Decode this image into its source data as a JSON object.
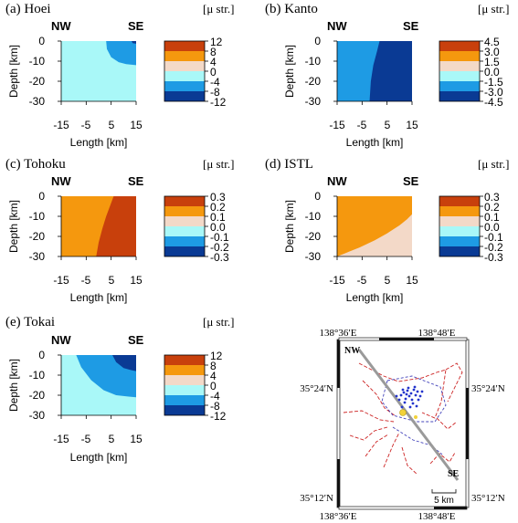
{
  "colors": {
    "dark_orange": "#c8400c",
    "orange": "#f5980e",
    "peach": "#f3d9c8",
    "cyan": "#a9f8f8",
    "sky": "#1e9be4",
    "navy": "#0a3a94"
  },
  "chart_data": [
    {
      "type": "heatmap",
      "panel": "(a) Hoei",
      "orient_left": "NW",
      "orient_right": "SE",
      "xlabel": "Length [km]",
      "ylabel": "Depth [km]",
      "xticks": [
        "-15",
        "-5",
        "5",
        "15"
      ],
      "yticks": [
        "0",
        "-10",
        "-20",
        "-30"
      ],
      "xlim": [
        -15,
        15
      ],
      "ylim": [
        -30,
        0
      ],
      "unit": "[μ str.]",
      "colorbar_values": [
        "12",
        "8",
        "4",
        "0",
        "-4",
        "-8",
        "-12"
      ],
      "colorbar_colors": [
        "#c8400c",
        "#f5980e",
        "#f3d9c8",
        "#a9f8f8",
        "#1e9be4",
        "#0a3a94"
      ],
      "regions": [
        {
          "color": "#a9f8f8",
          "boundary": null
        },
        {
          "color": "#1e9be4",
          "boundary": [
            [
              3,
              0
            ],
            [
              3.3,
              -4
            ],
            [
              5,
              -8
            ],
            [
              8,
              -10.5
            ],
            [
              11,
              -11.5
            ],
            [
              15,
              -12
            ]
          ]
        },
        {
          "color": "#0a3a94",
          "boundary": [
            [
              13.2,
              0
            ],
            [
              13.6,
              -1
            ],
            [
              15,
              -1.3
            ]
          ]
        }
      ]
    },
    {
      "type": "heatmap",
      "panel": "(b) Kanto",
      "orient_left": "NW",
      "orient_right": "SE",
      "xlabel": "Length [km]",
      "ylabel": "Depth [km]",
      "xticks": [
        "-15",
        "-5",
        "5",
        "15"
      ],
      "yticks": [
        "0",
        "-10",
        "-20",
        "-30"
      ],
      "xlim": [
        -15,
        15
      ],
      "ylim": [
        -30,
        0
      ],
      "unit": "[μ str.]",
      "colorbar_values": [
        "4.5",
        "3.0",
        "1.5",
        "0.0",
        "-1.5",
        "-3.0",
        "-4.5"
      ],
      "colorbar_colors": [
        "#c8400c",
        "#f5980e",
        "#f3d9c8",
        "#a9f8f8",
        "#1e9be4",
        "#0a3a94"
      ],
      "regions": [
        {
          "color": "#1e9be4",
          "boundary": null
        },
        {
          "color": "#0a3a94",
          "boundary": [
            [
              2,
              0
            ],
            [
              1,
              -5
            ],
            [
              -0.5,
              -12
            ],
            [
              -1.5,
              -20
            ],
            [
              -2,
              -30
            ]
          ]
        }
      ]
    },
    {
      "type": "heatmap",
      "panel": "(c) Tohoku",
      "orient_left": "NW",
      "orient_right": "SE",
      "xlabel": "Length [km]",
      "ylabel": "Depth [km]",
      "xticks": [
        "-15",
        "-5",
        "5",
        "15"
      ],
      "yticks": [
        "0",
        "-10",
        "-20",
        "-30"
      ],
      "xlim": [
        -15,
        15
      ],
      "ylim": [
        -30,
        0
      ],
      "unit": "[μ str.]",
      "colorbar_values": [
        "0.3",
        "0.2",
        "0.1",
        "0.0",
        "-0.1",
        "-0.2",
        "-0.3"
      ],
      "colorbar_colors": [
        "#c8400c",
        "#f5980e",
        "#f3d9c8",
        "#a9f8f8",
        "#1e9be4",
        "#0a3a94"
      ],
      "regions": [
        {
          "color": "#f5980e",
          "boundary": null
        },
        {
          "color": "#c8400c",
          "boundary": [
            [
              6,
              0
            ],
            [
              4.5,
              -5
            ],
            [
              3,
              -10
            ],
            [
              1.5,
              -16
            ],
            [
              0,
              -23
            ],
            [
              -1,
              -30
            ]
          ]
        }
      ]
    },
    {
      "type": "heatmap",
      "panel": "(d) ISTL",
      "orient_left": "NW",
      "orient_right": "SE",
      "xlabel": "Length [km]",
      "ylabel": "Depth [km]",
      "xticks": [
        "-15",
        "-5",
        "5",
        "15"
      ],
      "yticks": [
        "0",
        "-10",
        "-20",
        "-30"
      ],
      "xlim": [
        -15,
        15
      ],
      "ylim": [
        -30,
        0
      ],
      "unit": "[μ str.]",
      "colorbar_values": [
        "0.3",
        "0.2",
        "0.1",
        "0.0",
        "-0.1",
        "-0.2",
        "-0.3"
      ],
      "colorbar_colors": [
        "#c8400c",
        "#f5980e",
        "#f3d9c8",
        "#a9f8f8",
        "#1e9be4",
        "#0a3a94"
      ],
      "regions": [
        {
          "color": "#f3d9c8",
          "boundary": null
        },
        {
          "color": "#f5980e",
          "boundary": [
            [
              -15,
              -30
            ],
            [
              -12,
              -28.5
            ],
            [
              -6,
              -25.5
            ],
            [
              0,
              -22
            ],
            [
              5,
              -18.5
            ],
            [
              10,
              -14.5
            ],
            [
              13,
              -11.5
            ],
            [
              15,
              -9
            ]
          ]
        }
      ]
    },
    {
      "type": "heatmap",
      "panel": "(e) Tokai",
      "orient_left": "NW",
      "orient_right": "SE",
      "xlabel": "Length [km]",
      "ylabel": "Depth [km]",
      "xticks": [
        "-15",
        "-5",
        "5",
        "15"
      ],
      "yticks": [
        "0",
        "-10",
        "-20",
        "-30"
      ],
      "xlim": [
        -15,
        15
      ],
      "ylim": [
        -30,
        0
      ],
      "unit": "[μ str.]",
      "colorbar_values": [
        "12",
        "8",
        "4",
        "0",
        "-4",
        "-8",
        "-12"
      ],
      "colorbar_colors": [
        "#c8400c",
        "#f5980e",
        "#f3d9c8",
        "#a9f8f8",
        "#1e9be4",
        "#0a3a94"
      ],
      "regions": [
        {
          "color": "#a9f8f8",
          "boundary": null
        },
        {
          "color": "#1e9be4",
          "boundary": [
            [
              -9,
              0
            ],
            [
              -7,
              -6
            ],
            [
              -3,
              -12.5
            ],
            [
              2,
              -17.5
            ],
            [
              7,
              -20
            ],
            [
              12,
              -20.7
            ],
            [
              15,
              -21
            ]
          ]
        },
        {
          "color": "#0a3a94",
          "boundary": [
            [
              5.5,
              0
            ],
            [
              7,
              -3.5
            ],
            [
              10,
              -6.5
            ],
            [
              13,
              -7.5
            ],
            [
              15,
              -8
            ]
          ]
        }
      ]
    }
  ],
  "map": {
    "lon_top_left": "138°36′E",
    "lon_top_right": "138°48′E",
    "lon_bottom_left": "138°36′E",
    "lon_bottom_right": "138°48′E",
    "lat_upper_left": "35°24′N",
    "lat_upper_right": "35°24′N",
    "lat_lower_left": "35°12′N",
    "lat_lower_right": "35°12′N",
    "label_nw": "NW",
    "label_se": "SE",
    "scale_label": "5 km"
  }
}
